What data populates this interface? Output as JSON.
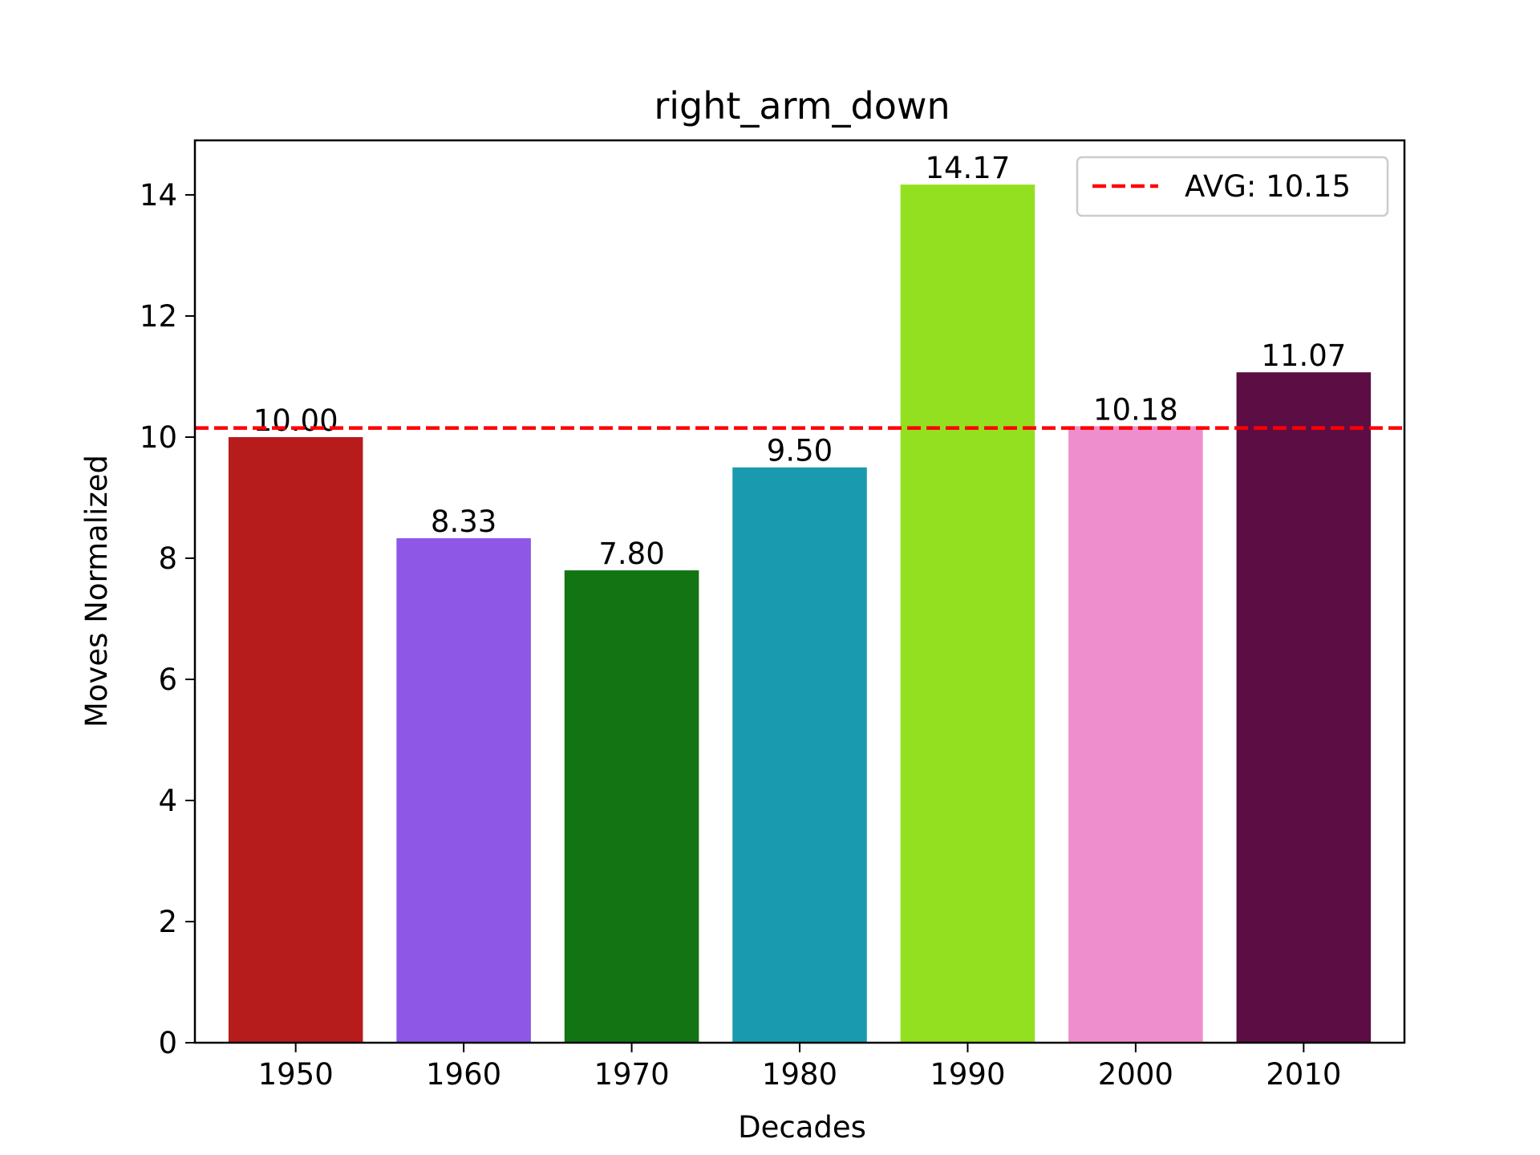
{
  "chart_data": {
    "type": "bar",
    "title": "right_arm_down",
    "xlabel": "Decades",
    "ylabel": "Moves Normalized",
    "categories": [
      "1950",
      "1960",
      "1970",
      "1980",
      "1990",
      "2000",
      "2010"
    ],
    "values": [
      10.0,
      8.33,
      7.8,
      9.5,
      14.17,
      10.18,
      11.07
    ],
    "value_labels": [
      "10.00",
      "8.33",
      "7.80",
      "9.50",
      "14.17",
      "10.18",
      "11.07"
    ],
    "bar_colors": [
      "#b71c1c",
      "#8e57e6",
      "#137413",
      "#1a9aaf",
      "#93e021",
      "#ee8ecd",
      "#5c0e44"
    ],
    "ylim": [
      0,
      14.9
    ],
    "yticks": [
      0,
      2,
      4,
      6,
      8,
      10,
      12,
      14
    ],
    "grid": false,
    "reference_line": {
      "value": 10.15,
      "label": "AVG: 10.15",
      "color": "#ff0000",
      "style": "dashed"
    },
    "legend": {
      "placement": "top-right",
      "entries": [
        "AVG: 10.15"
      ]
    }
  }
}
